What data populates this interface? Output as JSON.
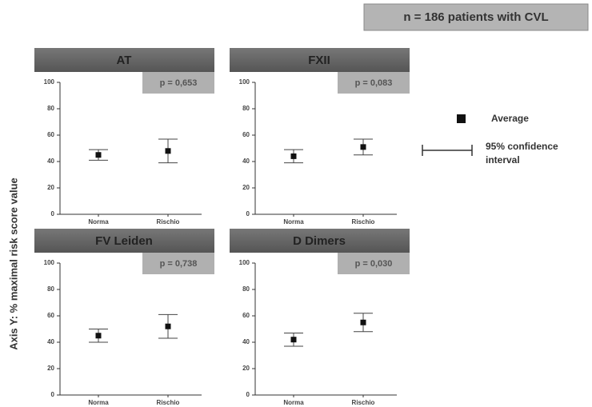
{
  "figure": {
    "note": "n = 186 patients with CVL",
    "ylabel": "Axis Y:  % maximal risk score value",
    "legend_marker": "Average",
    "legend_interval": "95% confidence interval"
  },
  "chart_data": [
    {
      "type": "errorbar",
      "title": "AT",
      "annotation": "p = 0,653",
      "categories": [
        "Norma",
        "Rischio"
      ],
      "values": [
        45,
        48
      ],
      "errors": [
        4,
        9
      ],
      "color": "#111111",
      "ylim": [
        0,
        100
      ],
      "yticks": [
        0,
        20,
        40,
        60,
        80,
        100
      ]
    },
    {
      "type": "errorbar",
      "title": "FXII",
      "annotation": "p = 0,083",
      "categories": [
        "Norma",
        "Rischio"
      ],
      "values": [
        44,
        51
      ],
      "errors": [
        5,
        6
      ],
      "color": "#111111",
      "ylim": [
        0,
        100
      ],
      "yticks": [
        0,
        20,
        40,
        60,
        80,
        100
      ]
    },
    {
      "type": "errorbar",
      "title": "FV Leiden",
      "annotation": "p = 0,738",
      "categories": [
        "Norma",
        "Rischio"
      ],
      "values": [
        45,
        52
      ],
      "errors": [
        5,
        9
      ],
      "color": "#111111",
      "ylim": [
        0,
        100
      ],
      "yticks": [
        0,
        20,
        40,
        60,
        80,
        100
      ]
    },
    {
      "type": "errorbar",
      "title": "D Dimers",
      "annotation": "p = 0,030",
      "categories": [
        "Norma",
        "Rischio"
      ],
      "values": [
        42,
        55
      ],
      "errors": [
        5,
        7
      ],
      "color": "#111111",
      "ylim": [
        0,
        100
      ],
      "yticks": [
        0,
        20,
        40,
        60,
        80,
        100
      ]
    }
  ]
}
